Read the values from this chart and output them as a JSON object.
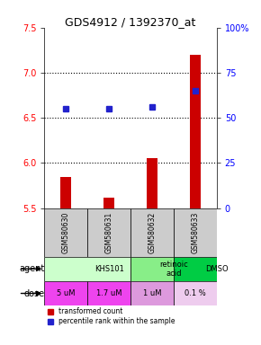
{
  "title": "GDS4912 / 1392370_at",
  "samples": [
    "GSM580630",
    "GSM580631",
    "GSM580632",
    "GSM580633"
  ],
  "bar_values": [
    5.85,
    5.62,
    6.05,
    7.2
  ],
  "dot_values": [
    55,
    55,
    56,
    65
  ],
  "ylim_left": [
    5.5,
    7.5
  ],
  "ylim_right": [
    0,
    100
  ],
  "yticks_left": [
    5.5,
    6.0,
    6.5,
    7.0,
    7.5
  ],
  "yticks_right": [
    0,
    25,
    50,
    75,
    100
  ],
  "ytick_labels_right": [
    "0",
    "25",
    "50",
    "75",
    "100%"
  ],
  "bar_color": "#cc0000",
  "dot_color": "#2222cc",
  "agent_groups": [
    {
      "start": 0,
      "end": 2,
      "label": "KHS101",
      "color": "#ccffcc"
    },
    {
      "start": 2,
      "end": 3,
      "label": "retinoic\nacid",
      "color": "#88ee88"
    },
    {
      "start": 3,
      "end": 4,
      "label": "DMSO",
      "color": "#00cc44"
    }
  ],
  "dose_row": [
    "5 uM",
    "1.7 uM",
    "1 uM",
    "0.1 %"
  ],
  "dose_colors": [
    "#ee44ee",
    "#ee44ee",
    "#cc88cc",
    "#ddaadd"
  ],
  "sample_bg": "#cccccc",
  "legend_bar_label": "transformed count",
  "legend_dot_label": "percentile rank within the sample",
  "agent_label": "agent",
  "dose_label": "dose",
  "hlines": [
    6.0,
    6.5,
    7.0
  ],
  "background_color": "#ffffff",
  "bar_width": 0.25
}
